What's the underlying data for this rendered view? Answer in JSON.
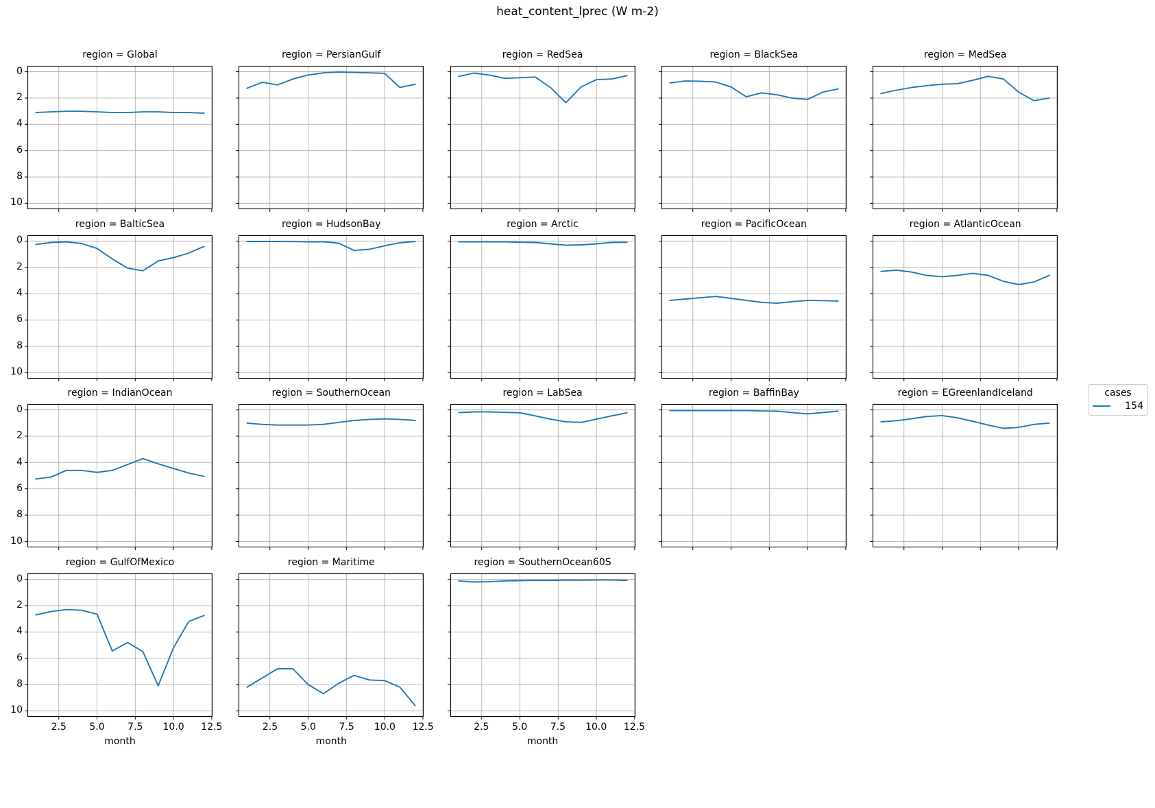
{
  "figure": {
    "title": "heat_content_lprec (W m-2)"
  },
  "legend": {
    "title": "cases",
    "entries": [
      {
        "label": "154",
        "color": "#1f77b4"
      }
    ]
  },
  "chart_data": {
    "type": "line",
    "title": "heat_content_lprec (W m-2)",
    "xlabel": "month",
    "facet_title_prefix": "region = ",
    "x": [
      1,
      2,
      3,
      4,
      5,
      6,
      7,
      8,
      9,
      10,
      11,
      12
    ],
    "x_tick_labels": [
      "2.5",
      "5.0",
      "7.5",
      "10.0",
      "12.5"
    ],
    "x_tick_values": [
      2.5,
      5.0,
      7.5,
      10.0,
      12.5
    ],
    "y_tick_labels": [
      "0",
      "2",
      "4",
      "6",
      "8",
      "10"
    ],
    "y_tick_values": [
      0,
      2,
      4,
      6,
      8,
      10
    ],
    "xlim": [
      0.45,
      12.55
    ],
    "ylim": [
      -0.45,
      10.45
    ],
    "y_axis_inverted": true,
    "grid": true,
    "line_color": "#1f77b4",
    "grid_color": "#b0b0b0",
    "legend_series": "154",
    "facets": [
      {
        "region": "Global",
        "values": [
          3.1,
          3.05,
          3.0,
          3.0,
          3.05,
          3.1,
          3.1,
          3.05,
          3.05,
          3.1,
          3.1,
          3.15
        ]
      },
      {
        "region": "PersianGulf",
        "values": [
          1.25,
          0.8,
          1.0,
          0.55,
          0.25,
          0.08,
          0.02,
          0.05,
          0.08,
          0.12,
          1.2,
          0.95
        ]
      },
      {
        "region": "RedSea",
        "values": [
          0.35,
          0.1,
          0.25,
          0.5,
          0.45,
          0.4,
          1.2,
          2.35,
          1.15,
          0.6,
          0.55,
          0.3
        ]
      },
      {
        "region": "BlackSea",
        "values": [
          0.85,
          0.7,
          0.72,
          0.78,
          1.15,
          1.9,
          1.6,
          1.75,
          2.0,
          2.1,
          1.55,
          1.3
        ]
      },
      {
        "region": "MedSea",
        "values": [
          1.65,
          1.4,
          1.2,
          1.05,
          0.95,
          0.9,
          0.65,
          0.35,
          0.55,
          1.55,
          2.2,
          2.0
        ]
      },
      {
        "region": "BalticSea",
        "values": [
          0.25,
          0.1,
          0.05,
          0.18,
          0.55,
          1.35,
          2.05,
          2.25,
          1.5,
          1.25,
          0.9,
          0.4
        ]
      },
      {
        "region": "HudsonBay",
        "values": [
          0.02,
          0.02,
          0.02,
          0.03,
          0.05,
          0.05,
          0.15,
          0.7,
          0.62,
          0.35,
          0.12,
          0.02
        ]
      },
      {
        "region": "Arctic",
        "values": [
          0.05,
          0.05,
          0.05,
          0.05,
          0.08,
          0.1,
          0.2,
          0.3,
          0.28,
          0.2,
          0.1,
          0.08
        ]
      },
      {
        "region": "PacificOcean",
        "values": [
          4.5,
          4.4,
          4.3,
          4.2,
          4.35,
          4.5,
          4.65,
          4.72,
          4.6,
          4.5,
          4.52,
          4.55
        ]
      },
      {
        "region": "AtlanticOcean",
        "values": [
          2.3,
          2.2,
          2.35,
          2.6,
          2.7,
          2.6,
          2.45,
          2.6,
          3.05,
          3.3,
          3.1,
          2.6
        ]
      },
      {
        "region": "IndianOcean",
        "values": [
          5.25,
          5.1,
          4.6,
          4.6,
          4.75,
          4.6,
          4.15,
          3.7,
          4.1,
          4.45,
          4.8,
          5.05
        ]
      },
      {
        "region": "SouthernOcean",
        "values": [
          1.0,
          1.1,
          1.15,
          1.15,
          1.15,
          1.1,
          0.95,
          0.8,
          0.72,
          0.68,
          0.72,
          0.8
        ]
      },
      {
        "region": "LabSea",
        "values": [
          0.2,
          0.15,
          0.15,
          0.18,
          0.22,
          0.45,
          0.7,
          0.9,
          0.95,
          0.7,
          0.45,
          0.22
        ]
      },
      {
        "region": "BaffinBay",
        "values": [
          0.05,
          0.05,
          0.05,
          0.05,
          0.05,
          0.05,
          0.08,
          0.1,
          0.2,
          0.3,
          0.2,
          0.1
        ]
      },
      {
        "region": "EGreenlandIceland",
        "values": [
          0.9,
          0.82,
          0.67,
          0.5,
          0.43,
          0.6,
          0.87,
          1.15,
          1.4,
          1.33,
          1.1,
          1.0
        ]
      },
      {
        "region": "GulfOfMexico",
        "values": [
          2.7,
          2.45,
          2.3,
          2.35,
          2.65,
          5.45,
          4.8,
          5.5,
          8.1,
          5.2,
          3.2,
          2.75
        ]
      },
      {
        "region": "Maritime",
        "values": [
          8.2,
          7.5,
          6.8,
          6.8,
          8.0,
          8.7,
          7.9,
          7.3,
          7.65,
          7.7,
          8.2,
          9.6
        ]
      },
      {
        "region": "SouthernOcean60S",
        "values": [
          0.12,
          0.2,
          0.18,
          0.12,
          0.1,
          0.08,
          0.08,
          0.06,
          0.06,
          0.05,
          0.05,
          0.08
        ]
      }
    ]
  }
}
